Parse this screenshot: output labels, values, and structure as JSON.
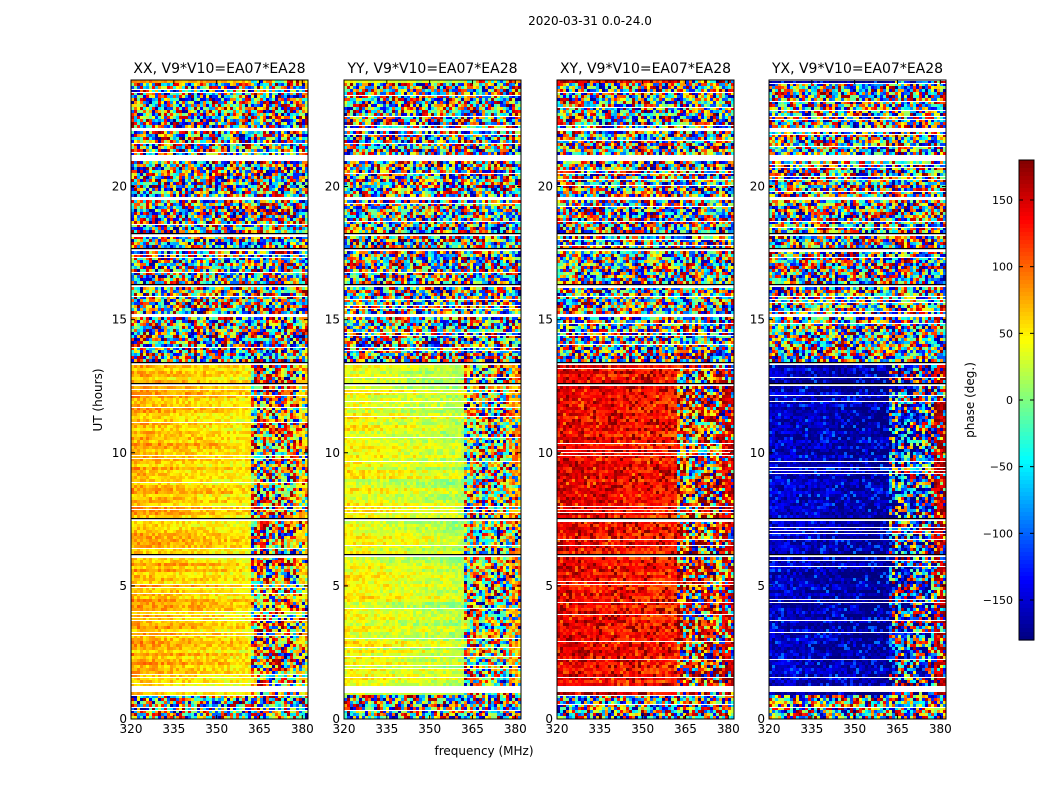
{
  "suptitle": "2020-03-31 0.0-24.0",
  "chart_data": {
    "type": "heatmap",
    "xlabel": "frequency (MHz)",
    "ylabel": "UT (hours)",
    "xlim": [
      320,
      382
    ],
    "ylim": [
      0,
      24
    ],
    "xticks": [
      320,
      335,
      350,
      365,
      380
    ],
    "yticks": [
      0,
      5,
      10,
      15,
      20
    ],
    "colorbar": {
      "label": "phase (deg.)",
      "range": [
        -180,
        180
      ],
      "ticks": [
        150,
        100,
        50,
        0,
        -50,
        -100,
        -150
      ],
      "tick_labels": [
        "150",
        "100",
        "50",
        "0",
        "−50",
        "−100",
        "−150"
      ],
      "colormap": "jet"
    },
    "panels": [
      {
        "title": "XX, V9*V10=EA07*EA28",
        "phase_low_band": 75,
        "phase_edge": 60,
        "band_split_mhz": 361
      },
      {
        "title": "YY, V9*V10=EA07*EA28",
        "phase_low_band": 45,
        "phase_edge": 80,
        "band_split_mhz": 361
      },
      {
        "title": "XY, V9*V10=EA07*EA28",
        "phase_low_band": 145,
        "phase_edge": 150,
        "band_split_mhz": 361
      },
      {
        "title": "YX, V9*V10=EA07*EA28",
        "phase_low_band": -150,
        "phase_edge": 160,
        "band_split_mhz": 361
      }
    ],
    "noisy_ut_ranges": [
      [
        13.5,
        24.0
      ],
      [
        0.0,
        1.0
      ]
    ],
    "blank_ut_ranges": [
      [
        1.1,
        1.3
      ],
      [
        19.5,
        19.7
      ],
      [
        21.0,
        21.2
      ],
      [
        22.1,
        22.3
      ],
      [
        18.6,
        18.7
      ],
      [
        15.2,
        15.3
      ]
    ],
    "flagged_ut_ranges": [
      [
        2.3,
        2.35
      ],
      [
        3.5,
        3.6
      ],
      [
        6.1,
        6.2
      ],
      [
        7.5,
        7.6
      ],
      [
        9.3,
        9.35
      ],
      [
        12.6,
        12.7
      ],
      [
        13.4,
        13.5
      ],
      [
        16.3,
        16.45
      ],
      [
        17.6,
        17.7
      ],
      [
        18.2,
        18.3
      ]
    ]
  }
}
